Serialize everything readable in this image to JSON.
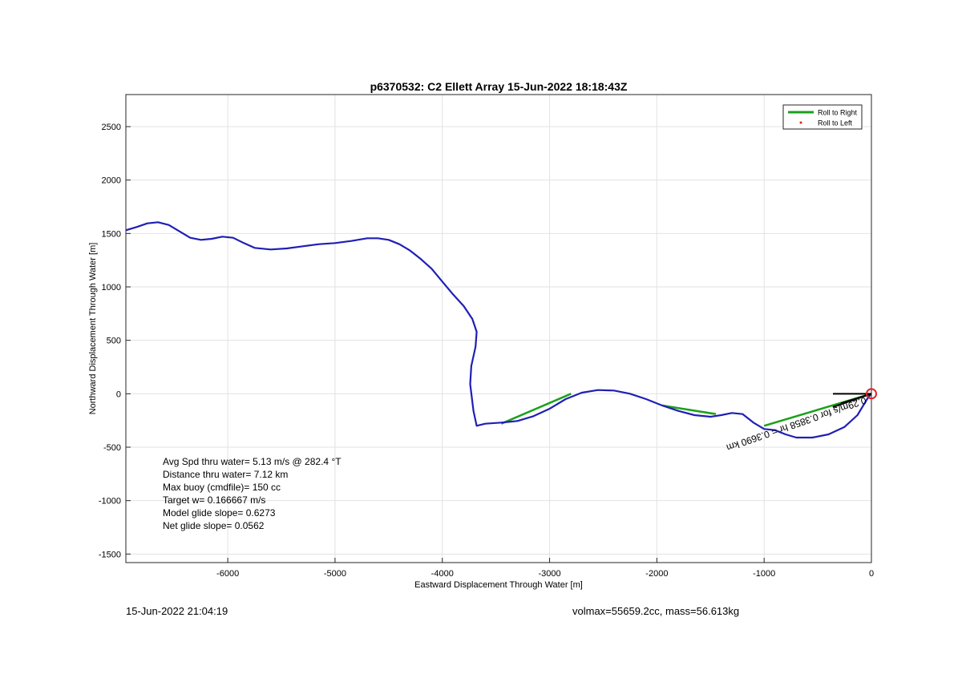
{
  "chart_data": {
    "type": "line",
    "title": "p6370532: C2 Ellett Array 15-Jun-2022 18:18:43Z",
    "xlabel": "Eastward Displacement Through Water [m]",
    "ylabel": "Northward Displacement Through Water [m]",
    "xlim": [
      -6950,
      0
    ],
    "ylim": [
      -1580,
      2800
    ],
    "xticks": [
      -6000,
      -5000,
      -4000,
      -3000,
      -2000,
      -1000,
      0
    ],
    "yticks": [
      -1500,
      -1000,
      -500,
      0,
      500,
      1000,
      1500,
      2000,
      2500
    ],
    "grid": true,
    "legend": {
      "placement": "top-right",
      "entries": [
        {
          "label": "Roll to Right",
          "color": "#1aa11a",
          "style": "line"
        },
        {
          "label": "Roll to Left",
          "color": "#e02020",
          "style": "dot"
        }
      ]
    },
    "series": [
      {
        "color": "#1f1fb5",
        "points": [
          [
            -6950,
            1530
          ],
          [
            -6850,
            1560
          ],
          [
            -6750,
            1595
          ],
          [
            -6650,
            1605
          ],
          [
            -6550,
            1580
          ],
          [
            -6450,
            1520
          ],
          [
            -6350,
            1460
          ],
          [
            -6250,
            1440
          ],
          [
            -6150,
            1450
          ],
          [
            -6050,
            1470
          ],
          [
            -5950,
            1460
          ],
          [
            -5850,
            1410
          ],
          [
            -5750,
            1365
          ],
          [
            -5600,
            1350
          ],
          [
            -5450,
            1360
          ],
          [
            -5300,
            1380
          ],
          [
            -5150,
            1400
          ],
          [
            -5000,
            1410
          ],
          [
            -4850,
            1430
          ],
          [
            -4700,
            1455
          ],
          [
            -4600,
            1455
          ],
          [
            -4500,
            1440
          ],
          [
            -4400,
            1400
          ],
          [
            -4300,
            1340
          ],
          [
            -4200,
            1260
          ],
          [
            -4100,
            1170
          ],
          [
            -4000,
            1050
          ],
          [
            -3900,
            930
          ],
          [
            -3800,
            820
          ],
          [
            -3720,
            700
          ],
          [
            -3680,
            580
          ],
          [
            -3690,
            440
          ],
          [
            -3730,
            260
          ],
          [
            -3740,
            90
          ],
          [
            -3710,
            -160
          ],
          [
            -3680,
            -300
          ],
          [
            -3600,
            -280
          ],
          [
            -3450,
            -270
          ],
          [
            -3300,
            -255
          ],
          [
            -3150,
            -210
          ],
          [
            -3000,
            -140
          ],
          [
            -2850,
            -50
          ],
          [
            -2700,
            10
          ],
          [
            -2550,
            35
          ],
          [
            -2400,
            30
          ],
          [
            -2250,
            0
          ],
          [
            -2100,
            -50
          ],
          [
            -1950,
            -110
          ],
          [
            -1800,
            -160
          ],
          [
            -1650,
            -200
          ],
          [
            -1500,
            -215
          ],
          [
            -1400,
            -200
          ],
          [
            -1300,
            -180
          ],
          [
            -1200,
            -190
          ],
          [
            -1100,
            -270
          ],
          [
            -1000,
            -330
          ],
          [
            -900,
            -340
          ],
          [
            -800,
            -380
          ],
          [
            -700,
            -410
          ],
          [
            -550,
            -410
          ],
          [
            -400,
            -380
          ],
          [
            -250,
            -310
          ],
          [
            -130,
            -200
          ],
          [
            -40,
            -50
          ],
          [
            0,
            0
          ]
        ]
      }
    ],
    "green_segments": [
      [
        [
          -3450,
          -280
        ],
        [
          -2800,
          0
        ]
      ],
      [
        [
          -1950,
          -110
        ],
        [
          -1450,
          -190
        ]
      ],
      [
        [
          -1000,
          -300
        ],
        [
          0,
          0
        ]
      ]
    ],
    "current_arrow": {
      "from": [
        0,
        0
      ],
      "to": [
        -360,
        -125
      ],
      "label": "0.29m/s for 0.3858 hr = 0.3690 km"
    },
    "endpoint_marker": [
      0,
      0
    ],
    "annotations": [
      "Avg Spd thru water=  5.13 m/s @ 282.4 °T",
      "Distance thru water=  7.12 km",
      "Max buoy (cmdfile)= 150 cc",
      "Target w= 0.166667 m/s",
      "Model glide slope= 0.6273",
      "Net glide slope= 0.0562"
    ]
  },
  "footer": {
    "timestamp": "15-Jun-2022 21:04:19",
    "volmass": "volmax=55659.2cc, mass=56.613kg"
  }
}
